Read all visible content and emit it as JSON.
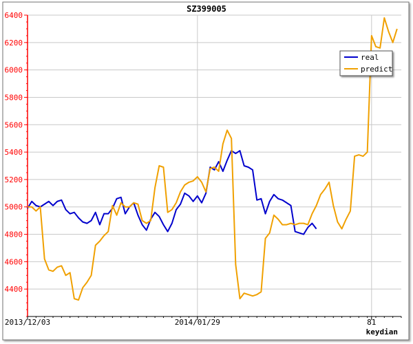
{
  "chart_data": {
    "type": "line",
    "title": "SZ399005",
    "watermark": "keydian",
    "ylim": [
      4200,
      6400
    ],
    "y_ticks": [
      4400,
      4600,
      4800,
      5000,
      5200,
      5400,
      5600,
      5800,
      6000,
      6200,
      6400
    ],
    "x_tick_labels": [
      {
        "label": "2013/12/03",
        "index": 0
      },
      {
        "label": "2014/01/29",
        "index": 40
      },
      {
        "label": "81",
        "index": 81
      }
    ],
    "x_range": [
      0,
      88
    ],
    "grid": true,
    "legend": {
      "placement": "top-right"
    },
    "colors": {
      "real": "#0000cc",
      "predict": "#f0a000",
      "axis": "#ff0000",
      "grid": "#c8c8c8"
    },
    "series": [
      {
        "name": "real",
        "color": "#0000cc",
        "values": [
          4990,
          5040,
          5010,
          5000,
          5020,
          5040,
          5010,
          5040,
          5050,
          4980,
          4950,
          4960,
          4920,
          4890,
          4880,
          4900,
          4960,
          4870,
          4950,
          4950,
          4990,
          5060,
          5070,
          4950,
          5000,
          5030,
          4940,
          4870,
          4830,
          4910,
          4960,
          4930,
          4870,
          4820,
          4880,
          4980,
          5020,
          5100,
          5080,
          5040,
          5080,
          5030,
          5100,
          5290,
          5270,
          5330,
          5260,
          5340,
          5410,
          5390,
          5410,
          5300,
          5290,
          5270,
          5050,
          5060,
          4950,
          5040,
          5090,
          5060,
          5050,
          5030,
          5010,
          4820,
          4810,
          4800,
          4850,
          4880,
          4840
        ]
      },
      {
        "name": "predict",
        "color": "#f0a000",
        "values": [
          5000,
          5000,
          4970,
          5000,
          4620,
          4540,
          4530,
          4560,
          4570,
          4500,
          4520,
          4330,
          4320,
          4410,
          4450,
          4500,
          4720,
          4750,
          4790,
          4820,
          5010,
          4940,
          5030,
          5000,
          5000,
          5030,
          5020,
          4900,
          4880,
          4900,
          5140,
          5300,
          5290,
          4960,
          4980,
          5030,
          5110,
          5160,
          5180,
          5190,
          5220,
          5180,
          5110,
          5280,
          5290,
          5260,
          5460,
          5560,
          5500,
          4580,
          4330,
          4370,
          4360,
          4350,
          4360,
          4380,
          4770,
          4810,
          4940,
          4910,
          4870,
          4870,
          4880,
          4870,
          4880,
          4880,
          4870,
          4950,
          5010,
          5090,
          5130,
          5180,
          5010,
          4890,
          4840,
          4910,
          4970,
          5370,
          5380,
          5370,
          5400,
          6250,
          6170,
          6160,
          6380,
          6280,
          6200,
          6300
        ]
      }
    ]
  }
}
